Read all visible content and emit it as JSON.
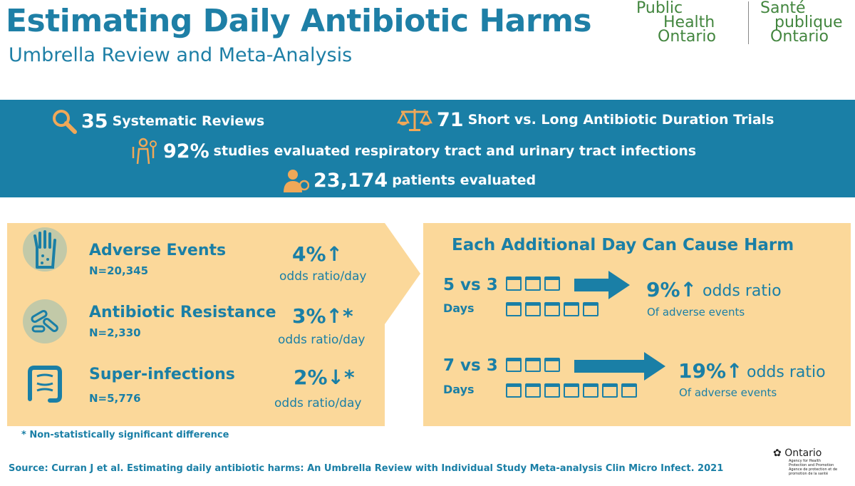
{
  "header": {
    "title": "Estimating Daily Antibiotic Harms",
    "subtitle": "Umbrella Review and Meta-Analysis"
  },
  "logo": {
    "en_line1": "Public",
    "en_line2": "Health",
    "en_line3": "Ontario",
    "fr_line1": "Santé",
    "fr_line2": "publique",
    "fr_line3": "Ontario"
  },
  "banner": {
    "reviews": {
      "num": "35",
      "label": "Systematic Reviews"
    },
    "trials": {
      "num": "71",
      "label": "Short vs. Long Antibiotic Duration Trials"
    },
    "studies": {
      "num": "92%",
      "label": "studies evaluated respiratory tract and urinary tract infections"
    },
    "patients": {
      "num": "23,174",
      "label": "patients evaluated"
    }
  },
  "harms": [
    {
      "name": "Adverse Events",
      "n": "N=20,345",
      "pct": "4%↑",
      "unit": "odds ratio/day"
    },
    {
      "name": "Antibiotic Resistance",
      "n": "N=2,330",
      "pct": "3%↑*",
      "unit": "odds ratio/day"
    },
    {
      "name": "Super-infections",
      "n": "N=5,776",
      "pct": "2%↓*",
      "unit": "odds ratio/day"
    }
  ],
  "additional": {
    "title": "Each Additional Day Can Cause Harm",
    "rows": [
      {
        "cmp": "5 vs 3",
        "days": "Days",
        "pct": "9%↑",
        "label": "odds ratio",
        "sub": "Of adverse events"
      },
      {
        "cmp": "7 vs 3",
        "days": "Days",
        "pct": "19%↑",
        "label": "odds ratio",
        "sub": "Of adverse events"
      }
    ]
  },
  "footnote": "* Non-statistically significant difference",
  "source": "Source: Curran J et al. Estimating daily antibiotic harms: An Umbrella Review with Individual Study Meta-analysis Clin Micro Infect. 2021",
  "ontario": {
    "name": "Ontario",
    "agency_en": "Agency for Health Protection and Promotion",
    "agency_fr": "Agence de protection et de promotion de la santé"
  },
  "colors": {
    "primary": "#1a7fa6",
    "accent": "#f0a858",
    "panel": "#fbd89a",
    "logo": "#43863f"
  }
}
